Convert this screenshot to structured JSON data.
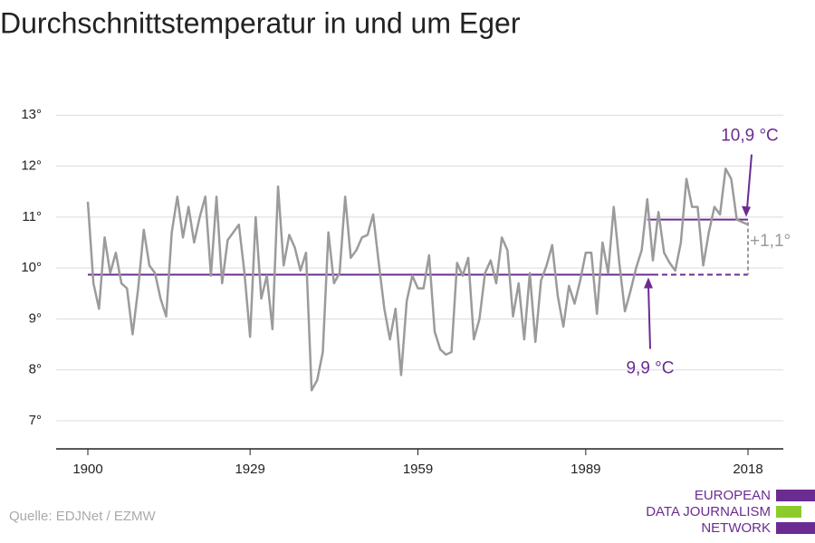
{
  "chart_data": {
    "type": "line",
    "title": "Durchschnittstemperatur in und um Eger",
    "source": "Quelle: EDJNet / EZMW",
    "logo": [
      "EUROPEAN",
      "DATA JOURNALISM",
      "NETWORK"
    ],
    "x": [
      1900,
      1901,
      1902,
      1903,
      1904,
      1905,
      1906,
      1907,
      1908,
      1909,
      1910,
      1911,
      1912,
      1913,
      1914,
      1915,
      1916,
      1917,
      1918,
      1919,
      1920,
      1921,
      1922,
      1923,
      1924,
      1925,
      1926,
      1927,
      1928,
      1929,
      1930,
      1931,
      1932,
      1933,
      1934,
      1935,
      1936,
      1937,
      1938,
      1939,
      1940,
      1941,
      1942,
      1943,
      1944,
      1945,
      1946,
      1947,
      1948,
      1949,
      1950,
      1951,
      1952,
      1953,
      1954,
      1955,
      1956,
      1957,
      1958,
      1959,
      1960,
      1961,
      1962,
      1963,
      1964,
      1965,
      1966,
      1967,
      1968,
      1969,
      1970,
      1971,
      1972,
      1973,
      1974,
      1975,
      1976,
      1977,
      1978,
      1979,
      1980,
      1981,
      1982,
      1983,
      1984,
      1985,
      1986,
      1987,
      1988,
      1989,
      1990,
      1991,
      1992,
      1993,
      1994,
      1995,
      1996,
      1997,
      1998,
      1999,
      2000,
      2001,
      2002,
      2003,
      2004,
      2005,
      2006,
      2007,
      2008,
      2009,
      2010,
      2011,
      2012,
      2013,
      2014,
      2015,
      2016,
      2017,
      2018
    ],
    "series": [
      {
        "color": "#9b9b9b",
        "values": [
          11.3,
          9.7,
          9.2,
          10.6,
          9.9,
          10.3,
          9.7,
          9.6,
          8.7,
          9.6,
          10.75,
          10.05,
          9.9,
          9.4,
          9.05,
          10.7,
          11.4,
          10.6,
          11.2,
          10.5,
          11.0,
          11.4,
          9.85,
          11.4,
          9.7,
          10.55,
          10.7,
          10.85,
          9.9,
          8.65,
          11.0,
          9.4,
          9.85,
          8.8,
          11.6,
          10.05,
          10.65,
          10.4,
          9.95,
          10.3,
          7.6,
          7.8,
          8.35,
          10.7,
          9.7,
          9.9,
          11.4,
          10.2,
          10.35,
          10.6,
          10.65,
          11.05,
          10.1,
          9.2,
          8.6,
          9.2,
          7.9,
          9.35,
          9.85,
          9.6,
          9.6,
          10.25,
          8.75,
          8.4,
          8.3,
          8.35,
          10.1,
          9.85,
          10.2,
          8.6,
          9.0,
          9.9,
          10.15,
          9.7,
          10.6,
          10.35,
          9.05,
          9.7,
          8.6,
          9.9,
          8.55,
          9.75,
          10.05,
          10.45,
          9.45,
          8.85,
          9.65,
          9.3,
          9.75,
          10.3,
          10.3,
          9.1,
          10.5,
          9.9,
          11.2,
          10.1,
          9.15,
          9.55,
          10.0,
          10.35,
          11.35,
          10.15,
          11.1,
          10.3,
          10.1,
          9.95,
          10.5,
          11.75,
          11.2,
          11.2,
          10.05,
          10.7,
          11.2,
          11.05,
          11.95,
          11.75,
          10.95,
          10.9,
          10.85
        ]
      }
    ],
    "xlim": [
      1900,
      2018
    ],
    "xticks": [
      1900,
      1929,
      1959,
      1989,
      2018
    ],
    "ylim": [
      6.45,
      13.2
    ],
    "yticks": [
      {
        "value": 7,
        "label": "7°"
      },
      {
        "value": 8,
        "label": "8°"
      },
      {
        "value": 9,
        "label": "9°"
      },
      {
        "value": 10,
        "label": "10°"
      },
      {
        "value": 11,
        "label": "11°"
      },
      {
        "value": 12,
        "label": "12°"
      },
      {
        "value": 13,
        "label": "13°"
      }
    ],
    "grid": true,
    "baseline": {
      "value": 9.87,
      "from": 1900,
      "to": 2001,
      "label": "9,9 °C",
      "color": "#6b2c91"
    },
    "recent": {
      "value": 10.95,
      "from": 2000,
      "to": 2018,
      "label": "10,9 °C",
      "color": "#6b2c91"
    },
    "difference_label": "+1,1°"
  }
}
